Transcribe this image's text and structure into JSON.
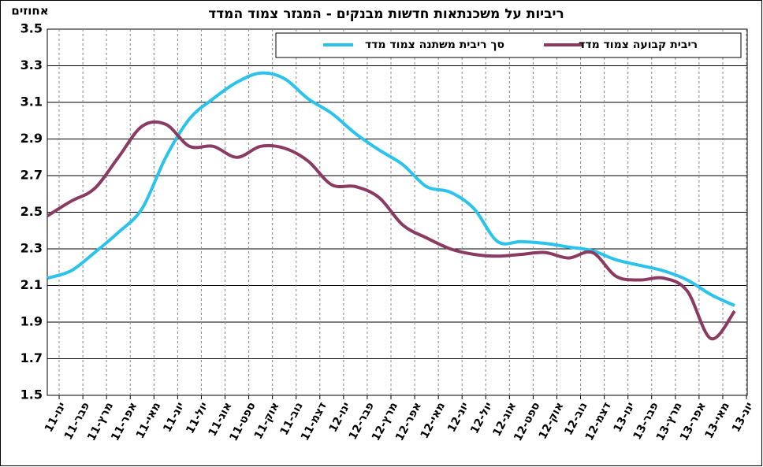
{
  "chart_data": {
    "type": "line",
    "title": "ריביות על משכנתאות חדשות מבנקים - המגזר צמוד המדד",
    "y_label": "אחוזים",
    "categories": [
      "ינו-11",
      "פבר-11",
      "מרץ-11",
      "אפר-11",
      "מאי-11",
      "יונ-11",
      "יול-11",
      "אוג-11",
      "ספט-11",
      "אוק-11",
      "נוב-11",
      "דצמ-11",
      "ינו-12",
      "פבר-12",
      "מרץ-12",
      "אפר-12",
      "מאי-12",
      "יונ-12",
      "יול-12",
      "אוג-12",
      "ספט-12",
      "אוק-12",
      "נוב-12",
      "דצמ-12",
      "ינו-13",
      "פבר-13",
      "מרץ-13",
      "אפר-13",
      "מאי-13",
      "יונ-13"
    ],
    "series": [
      {
        "name": "סך ריבית משתנה צמוד מדד",
        "color": "#29c3ec",
        "values": [
          2.14,
          2.18,
          2.28,
          2.39,
          2.52,
          2.8,
          3.01,
          3.12,
          3.21,
          3.26,
          3.23,
          3.12,
          3.04,
          2.93,
          2.84,
          2.76,
          2.64,
          2.61,
          2.52,
          2.34,
          2.34,
          2.33,
          2.31,
          2.29,
          2.24,
          2.21,
          2.18,
          2.13,
          2.05,
          1.99
        ]
      },
      {
        "name": "ריבית קבועה צמוד מדד",
        "color": "#8b3a62",
        "values": [
          2.48,
          2.56,
          2.63,
          2.8,
          2.97,
          2.98,
          2.86,
          2.86,
          2.8,
          2.86,
          2.85,
          2.78,
          2.65,
          2.64,
          2.58,
          2.43,
          2.36,
          2.3,
          2.27,
          2.26,
          2.27,
          2.28,
          2.25,
          2.28,
          2.15,
          2.13,
          2.14,
          2.07,
          1.81,
          1.96
        ]
      }
    ],
    "ylim": [
      1.5,
      3.5
    ],
    "yticks": [
      1.5,
      1.7,
      1.9,
      2.1,
      2.3,
      2.5,
      2.7,
      2.9,
      3.1,
      3.3,
      3.5
    ],
    "grid": true
  }
}
